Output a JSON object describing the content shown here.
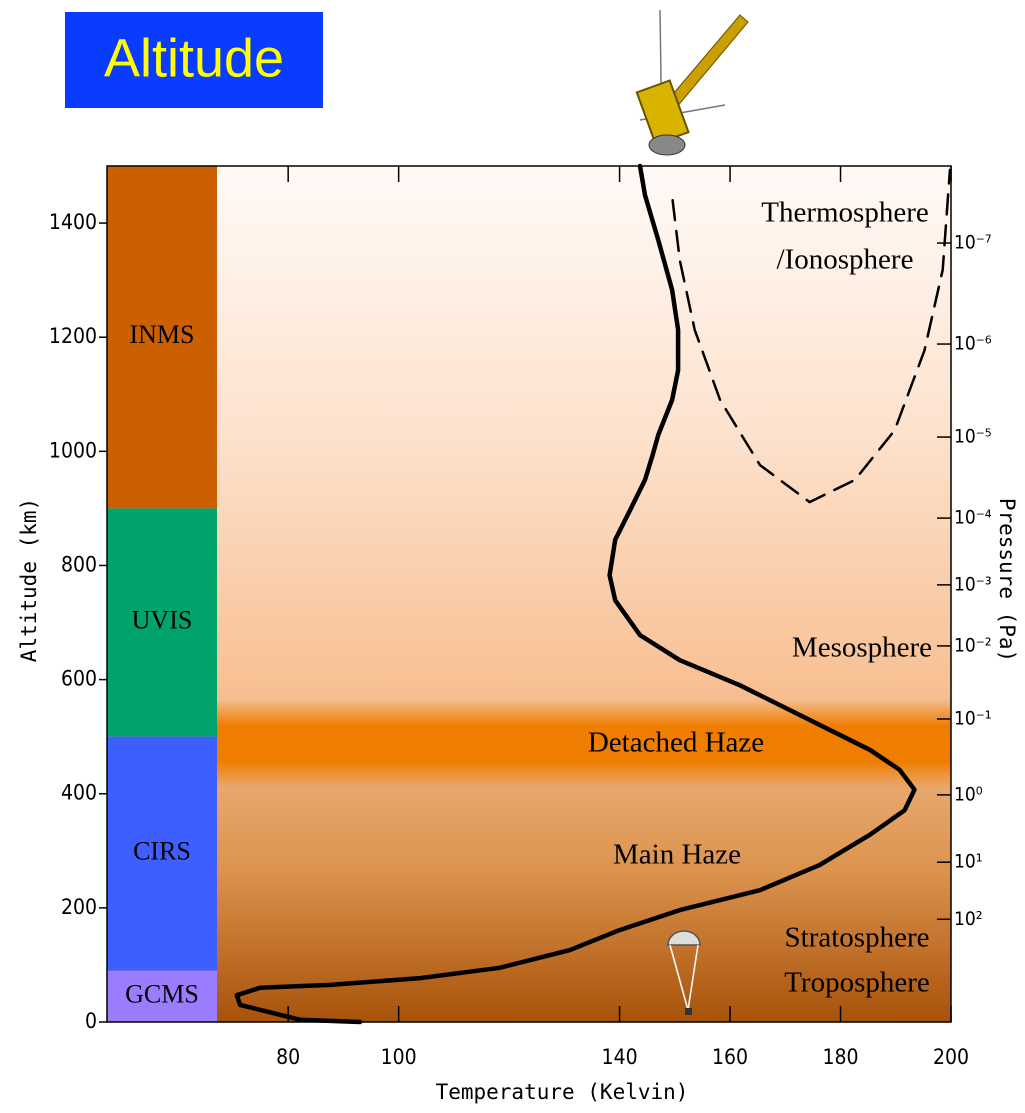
{
  "chart_data": {
    "type": "line",
    "title": "Altitude",
    "x_label": "Temperature (Kelvin)",
    "y_label": "Altitude (km)",
    "xlim": [
      47.2,
      200
    ],
    "xticks": [
      80,
      100,
      140,
      160,
      180,
      200
    ],
    "ylim": [
      0,
      1500
    ],
    "yticks": [
      0,
      200,
      400,
      600,
      800,
      1000,
      1200,
      1400
    ],
    "pressure_axis": {
      "label": "Pressure (Pa)",
      "ticks": [
        {
          "value": 1e-07,
          "label": "10⁻⁷",
          "altitude": 1365
        },
        {
          "value": 1e-06,
          "label": "10⁻⁶",
          "altitude": 1188
        },
        {
          "value": 1e-05,
          "label": "10⁻⁵",
          "altitude": 1025
        },
        {
          "value": 0.0001,
          "label": "10⁻⁴",
          "altitude": 883
        },
        {
          "value": 0.001,
          "label": "10⁻³",
          "altitude": 766
        },
        {
          "value": 0.01,
          "label": "10⁻²",
          "altitude": 659
        },
        {
          "value": 0.1,
          "label": "10⁻¹",
          "altitude": 531
        },
        {
          "value": 1,
          "label": "10⁰",
          "altitude": 398
        },
        {
          "value": 10,
          "label": "10¹",
          "altitude": 280
        },
        {
          "value": 100,
          "label": "10²",
          "altitude": 180
        }
      ]
    },
    "series": [
      {
        "style": "solid",
        "color": "#000000",
        "x": [
          93.0,
          82.1,
          71.3,
          70.7,
          74.9,
          87.6,
          103.9,
          118.3,
          131.0,
          140.0,
          150.9,
          165.4,
          176.2,
          185.3,
          191.6,
          193.4,
          190.7,
          185.3,
          172.6,
          161.8,
          150.9,
          143.7,
          139.2,
          138.2,
          139.2,
          141.9,
          144.6,
          146.0,
          147.0,
          149.5,
          150.6,
          150.6,
          149.5,
          147.0,
          144.6,
          143.7
        ],
        "y": [
          0,
          4,
          30,
          47,
          60,
          65,
          77,
          95,
          126,
          161,
          196,
          231,
          275,
          328,
          371,
          407,
          442,
          477,
          538,
          590,
          634,
          678,
          739,
          783,
          845,
          897,
          950,
          994,
          1029,
          1090,
          1142,
          1213,
          1283,
          1370,
          1449,
          1500
        ]
      },
      {
        "style": "dashed",
        "color": "#000000",
        "x": [
          149.6,
          150.9,
          153.6,
          158.2,
          165.4,
          174.4,
          182.6,
          189.8,
          195.2,
          198.5,
          199.8
        ],
        "y": [
          1440,
          1335,
          1213,
          1090,
          976,
          911,
          950,
          1037,
          1177,
          1318,
          1493
        ]
      }
    ],
    "instruments": [
      {
        "name": "INMS",
        "range": [
          900,
          1500
        ],
        "color": "#cc5f00"
      },
      {
        "name": "UVIS",
        "range": [
          500,
          900
        ],
        "color": "#00a46b"
      },
      {
        "name": "CIRS",
        "range": [
          90,
          500
        ],
        "color": "#3d5fff"
      },
      {
        "name": "GCMS",
        "range": [
          0,
          90
        ],
        "color": "#9a7dff"
      }
    ],
    "annotations": [
      "Thermosphere",
      "/Ionosphere",
      "Mesosphere",
      "Detached Haze",
      "Main Haze",
      "Stratosphere",
      "Troposphere"
    ]
  }
}
